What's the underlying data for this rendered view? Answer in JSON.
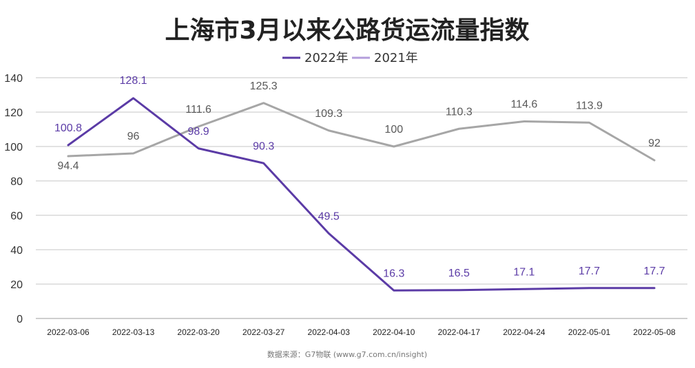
{
  "chart_data": {
    "type": "line",
    "title": "上海市3月以来公路货运流量指数",
    "categories": [
      "2022-03-06",
      "2022-03-13",
      "2022-03-20",
      "2022-03-27",
      "2022-04-03",
      "2022-04-10",
      "2022-04-17",
      "2022-04-24",
      "2022-05-01",
      "2022-05-08"
    ],
    "series": [
      {
        "name": "2022年",
        "color": "#5B3BA6",
        "values": [
          100.8,
          128.1,
          98.9,
          90.3,
          49.5,
          16.3,
          16.5,
          17.1,
          17.7,
          17.7
        ]
      },
      {
        "name": "2021年",
        "color": "#A6A6A6",
        "values": [
          94.4,
          96,
          111.6,
          125.3,
          109.3,
          100,
          110.3,
          114.6,
          113.9,
          92
        ]
      }
    ],
    "ylim": [
      0,
      140
    ],
    "yticks": [
      0,
      20,
      40,
      60,
      80,
      100,
      120,
      140
    ],
    "grid": true,
    "legend_position": "top-center",
    "source": "数据来源：G7物联 (www.g7.com.cn/insight)"
  }
}
